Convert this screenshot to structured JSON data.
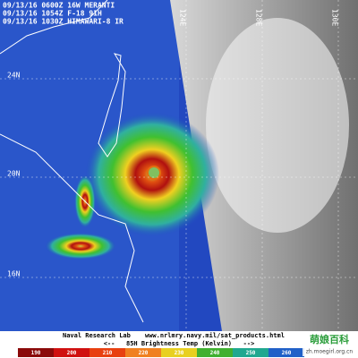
{
  "header": {
    "lines": [
      "09/13/16 0600Z 16W MERANTI",
      "09/13/16 1054Z F-18 91H",
      "09/13/16 1030Z HIMAWARI-8 IR"
    ]
  },
  "grid_labels": {
    "latitude": [
      "24N",
      "20N",
      "16N"
    ],
    "longitude": [
      "124E",
      "128E",
      "130E"
    ]
  },
  "footer": {
    "credit": "Naval Research Lab",
    "url": "www.nrlmry.navy.mil/sat_products.html",
    "colorbar_title": "<--   85H Brightness Temp (Kelvin)   -->",
    "colorbar_ticks": [
      "190",
      "200",
      "210",
      "220",
      "230",
      "240",
      "250",
      "260"
    ]
  },
  "watermark": {
    "logo": "萌娘百科",
    "url": "zh.moegirl.org.cn"
  }
}
